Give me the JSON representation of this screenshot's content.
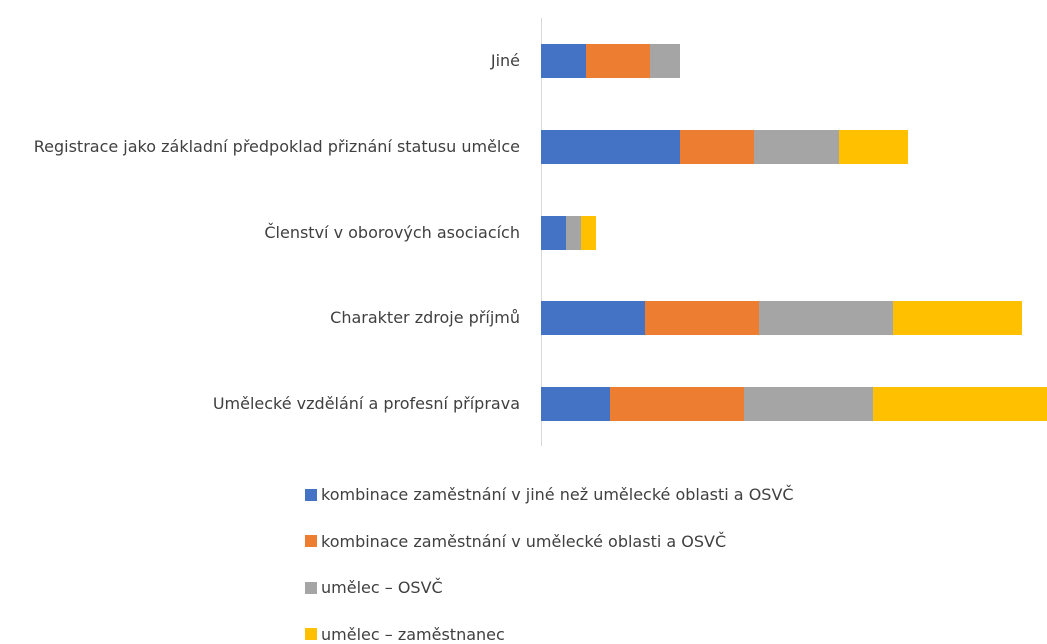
{
  "chart_data": {
    "type": "bar",
    "orientation": "horizontal",
    "stacked": true,
    "categories": [
      "Jiné",
      "Registrace jako základní předpoklad přiznání statusu umělce",
      "Členství v oborových asociacích",
      "Charakter zdroje příjmů",
      "Umělecké vzdělání a profesní příprava"
    ],
    "series": [
      {
        "name": "kombinace zaměstnání v jiné než umělecké oblasti a OSVČ",
        "color": "#4472c4",
        "values": [
          9,
          28,
          5,
          21,
          14
        ]
      },
      {
        "name": "kombinace zaměstnání v umělecké oblasti a OSVČ",
        "color": "#ed7d31",
        "values": [
          13,
          15,
          0,
          23,
          27
        ]
      },
      {
        "name": "umělec – OSVČ",
        "color": "#a5a5a5",
        "values": [
          6,
          17,
          3,
          27,
          26
        ]
      },
      {
        "name": "umělec – zaměstnanec",
        "color": "#ffc000",
        "values": [
          0,
          14,
          3,
          26,
          35
        ]
      }
    ],
    "xlim": [
      0,
      102
    ],
    "legend": "bottom"
  }
}
